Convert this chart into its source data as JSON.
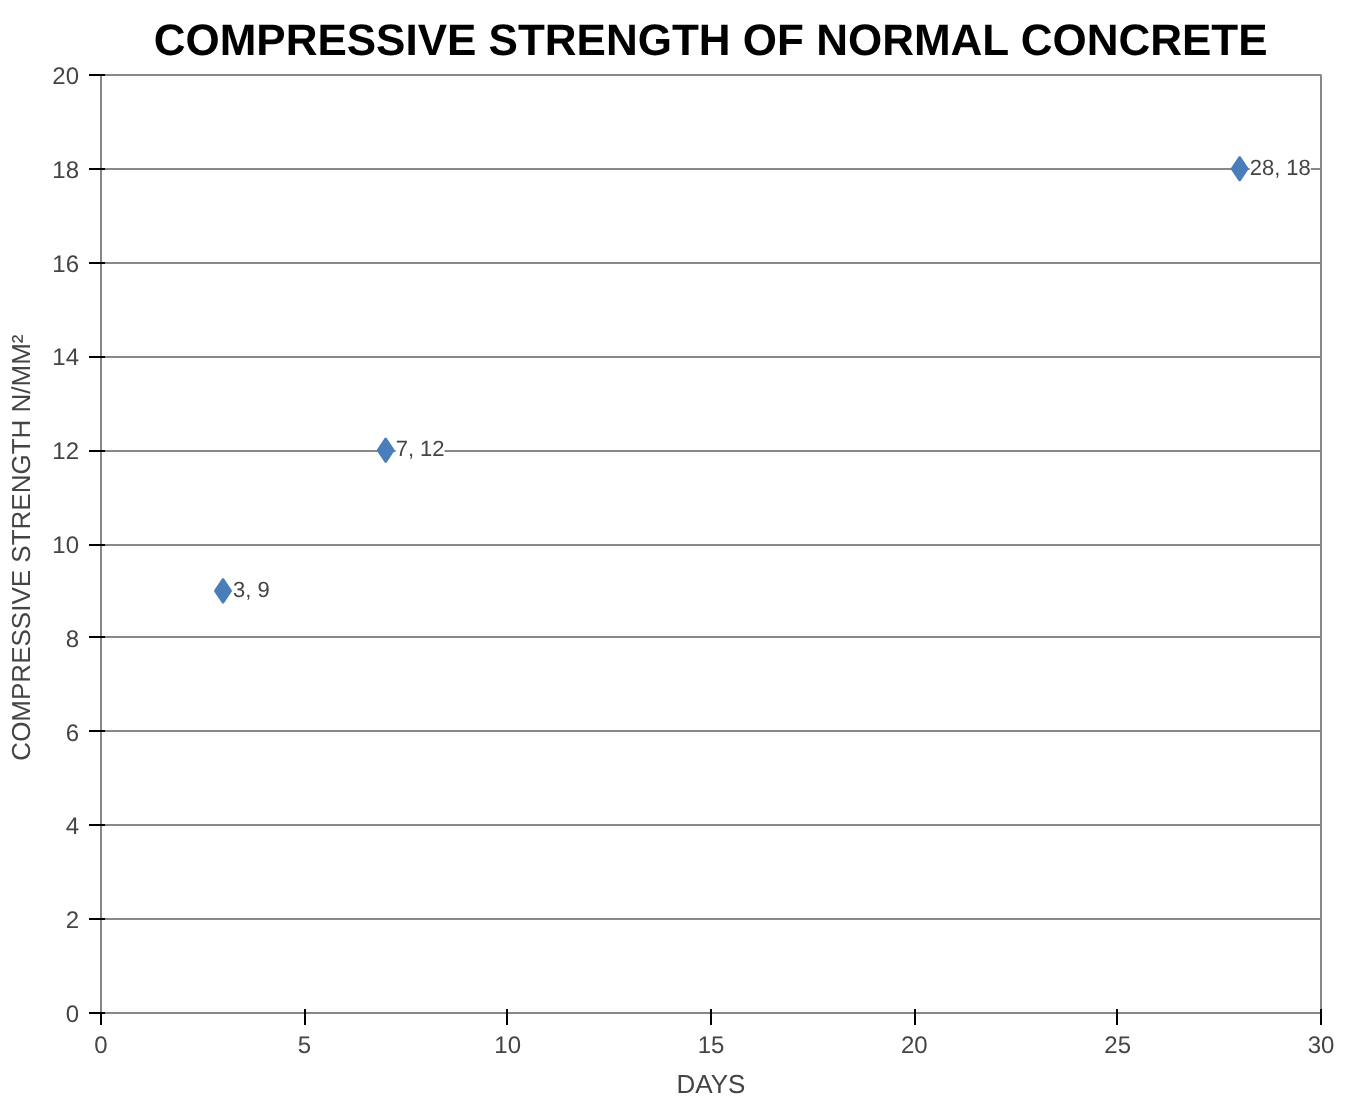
{
  "chart_data": {
    "type": "scatter",
    "title": "COMPRESSIVE STRENGTH OF NORMAL CONCRETE",
    "xlabel": "DAYS",
    "ylabel": "COMPRESSIVE STRENGTH  N/MM²",
    "x": [
      3,
      7,
      28
    ],
    "series": [
      {
        "color": "#4a7ebb",
        "values": [
          9,
          12,
          18
        ],
        "value_labels": [
          "3, 9",
          "7, 12",
          "28, 18"
        ]
      }
    ],
    "xlim": [
      0,
      30
    ],
    "xticks": [
      0,
      5,
      10,
      15,
      20,
      25,
      30
    ],
    "ylim": [
      0,
      20
    ],
    "yticks": [
      0,
      2,
      4,
      6,
      8,
      10,
      12,
      14,
      16,
      18,
      20
    ],
    "grid": "y",
    "marker": "diamond"
  }
}
